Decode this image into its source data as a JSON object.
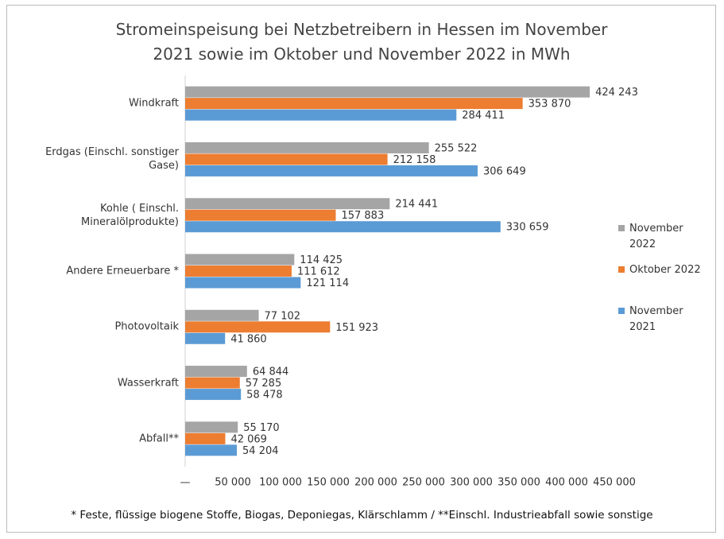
{
  "chart_data": {
    "type": "bar",
    "orientation": "horizontal",
    "title": "Stromeinspeisung bei Netzbetreibern in Hessen im November 2021 sowie im Oktober und November 2022 in MWh",
    "categories": [
      "Windkraft",
      "Erdgas (Einschl. sonstiger Gase)",
      "Kohle ( Einschl. Mineralölprodukte)",
      "Andere Erneuerbare *",
      "Photovoltaik",
      "Wasserkraft",
      "Abfall**"
    ],
    "series": [
      {
        "name": "November 2022",
        "color": "#a5a5a5",
        "values": [
          424243,
          255522,
          214441,
          114425,
          77102,
          64844,
          55170
        ],
        "value_labels": [
          "424 243",
          "255 522",
          "214 441",
          "114 425",
          "77 102",
          "64 844",
          "55 170"
        ]
      },
      {
        "name": "Oktober 2022",
        "color": "#ed7d31",
        "values": [
          353870,
          212158,
          157883,
          111612,
          151923,
          57285,
          42069
        ],
        "value_labels": [
          "353 870",
          "212 158",
          "157 883",
          "111 612",
          "151 923",
          "57 285",
          "42 069"
        ]
      },
      {
        "name": "November 2021",
        "color": "#5b9bd5",
        "values": [
          284411,
          306649,
          330659,
          121114,
          41860,
          58478,
          54204
        ],
        "value_labels": [
          "284 411",
          "306 649",
          "330 659",
          "121 114",
          "41 860",
          "58 478",
          "54 204"
        ]
      }
    ],
    "xlim": [
      0,
      450000
    ],
    "xticks": [
      {
        "value": 0,
        "label": "—"
      },
      {
        "value": 50000,
        "label": "50 000"
      },
      {
        "value": 100000,
        "label": "100 000"
      },
      {
        "value": 150000,
        "label": "150 000"
      },
      {
        "value": 200000,
        "label": "200 000"
      },
      {
        "value": 250000,
        "label": "250 000"
      },
      {
        "value": 300000,
        "label": "300 000"
      },
      {
        "value": 350000,
        "label": "350 000"
      },
      {
        "value": 400000,
        "label": "400 000"
      },
      {
        "value": 450000,
        "label": "450 000"
      }
    ],
    "legend": "right",
    "footnote": "* Feste, flüssige biogene Stoffe, Biogas, Deponiegas, Klärschlamm / **Einschl. Industrieabfall sowie sonstige"
  }
}
